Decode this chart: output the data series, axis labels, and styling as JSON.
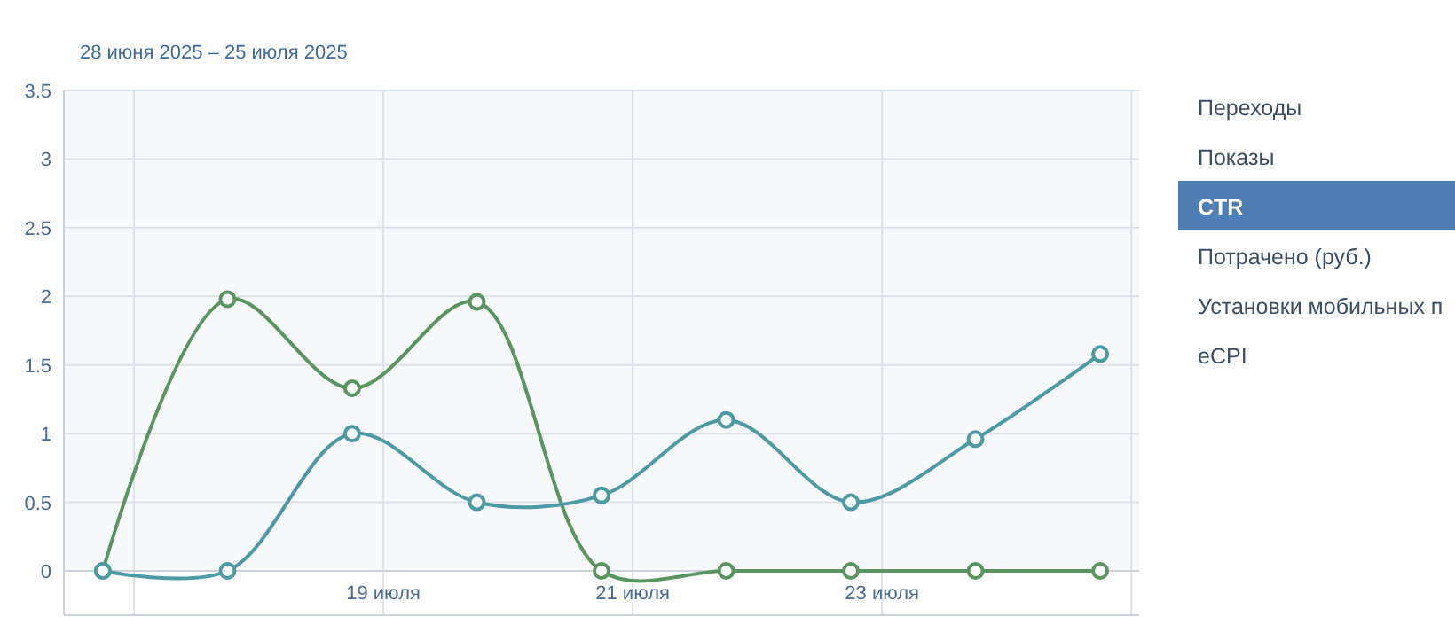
{
  "chart_data": {
    "type": "line",
    "title": "28 июня 2025 – 25 июля 2025",
    "x": [
      "2025-07-16T18:00",
      "2025-07-17T18:00",
      "2025-07-18T18:00",
      "2025-07-19T18:00",
      "2025-07-20T18:00",
      "2025-07-21T18:00",
      "2025-07-22T18:00",
      "2025-07-23T18:00",
      "2025-07-24T18:00"
    ],
    "series": [
      {
        "color": "#5a955f",
        "values": [
          0,
          1.98,
          1.33,
          1.96,
          0,
          0,
          0,
          0,
          0
        ]
      },
      {
        "color": "#4c9aa3",
        "values": [
          0,
          0,
          1.0,
          0.5,
          0.55,
          1.1,
          0.5,
          0.96,
          1.58
        ]
      }
    ],
    "xlim": [
      "2025-07-16T10:30",
      "2025-07-25T01:30"
    ],
    "xticks": [
      {
        "value": "2025-07-17",
        "label": null
      },
      {
        "value": "2025-07-19",
        "label": "19 июля"
      },
      {
        "value": "2025-07-21",
        "label": "21 июля"
      },
      {
        "value": "2025-07-23",
        "label": "23 июля"
      },
      {
        "value": "2025-07-25",
        "label": null
      }
    ],
    "ylim": [
      0,
      3.5
    ],
    "yticks": [
      0,
      0.5,
      1,
      1.5,
      2,
      2.5,
      3,
      3.5
    ],
    "grid": true,
    "marker": "circle",
    "line_style": "solid",
    "annotations": [
      "Переходы",
      "Показы",
      "CTR",
      "Потрачено (руб.)",
      "Установки мобильных п",
      "eCPI"
    ]
  }
}
